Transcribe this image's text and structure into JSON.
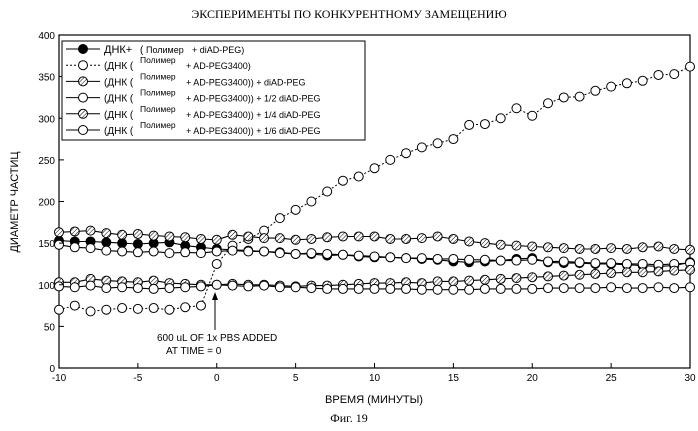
{
  "chart_data": {
    "type": "line",
    "title": "ЭКСПЕРИМЕНТЫ ПО КОНКУРЕНТНОМУ ЗАМЕЩЕНИЮ",
    "xlabel": "ВРЕМЯ (МИНУТЫ)",
    "ylabel": "ДИАМЕТР ЧАСТИЦ",
    "xlim": [
      -10,
      30
    ],
    "ylim": [
      0,
      400
    ],
    "xticks": [
      "-10",
      "-5",
      "0",
      "5",
      "10",
      "15",
      "20",
      "25",
      "30"
    ],
    "yticks": [
      "0",
      "50",
      "100",
      "150",
      "200",
      "250",
      "300",
      "350",
      "400"
    ],
    "grid": false,
    "legend_position": "top-left",
    "annotation": [
      "600 uL OF 1x PBS ADDED",
      "AT TIME = 0"
    ],
    "caption": "Фиг. 19",
    "x": [
      -10,
      -9,
      -8,
      -7,
      -6,
      -5,
      -4,
      -3,
      -2,
      -1,
      0,
      1,
      2,
      3,
      4,
      5,
      6,
      7,
      8,
      9,
      10,
      11,
      12,
      13,
      14,
      15,
      16,
      17,
      18,
      19,
      20,
      21,
      22,
      23,
      24,
      25,
      26,
      27,
      28,
      29,
      30
    ],
    "series": [
      {
        "legend": {
          "main": "ДНК+",
          "paren_open": "(",
          "sup": "",
          "sub": "Полимер",
          "rest": "+ diAD-PEG)"
        },
        "marker": "filled",
        "values": [
          153,
          152,
          152,
          151,
          150,
          149,
          150,
          151,
          147,
          145,
          143,
          142,
          141,
          140,
          139,
          137,
          137,
          135,
          136,
          134,
          133,
          133,
          132,
          131,
          130,
          128,
          127,
          128,
          129,
          131,
          132,
          127,
          126,
          126,
          125,
          125,
          124,
          123,
          122,
          123,
          127
        ]
      },
      {
        "legend": {
          "main": "",
          "paren_open": "(ДНК (",
          "sup": "Полимер",
          "sub": "",
          "rest": "+ AD-PEG3400)"
        },
        "marker": "open",
        "values": [
          70,
          75,
          68,
          70,
          72,
          71,
          72,
          70,
          73,
          75,
          125,
          147,
          155,
          165,
          180,
          190,
          200,
          212,
          225,
          230,
          240,
          250,
          258,
          265,
          270,
          275,
          292,
          293,
          300,
          312,
          303,
          318,
          325,
          326,
          333,
          338,
          342,
          345,
          352,
          353,
          362
        ]
      },
      {
        "legend": {
          "main": "",
          "paren_open": "(ДНК (",
          "sup": "Полимер",
          "sub": "",
          "rest": "+ AD-PEG3400)) + diAD-PEG"
        },
        "marker": "hatched",
        "values": [
          163,
          164,
          165,
          162,
          160,
          161,
          159,
          158,
          157,
          155,
          154,
          160,
          158,
          156,
          156,
          154,
          155,
          157,
          158,
          158,
          158,
          155,
          155,
          156,
          158,
          155,
          152,
          150,
          148,
          147,
          146,
          145,
          144,
          143,
          143,
          144,
          143,
          145,
          146,
          143,
          142
        ]
      },
      {
        "legend": {
          "main": "",
          "paren_open": "(ДНК (",
          "sup": "Полимер",
          "sub": "",
          "rest": "+ AD-PEG3400)) + 1/2 diAD-PEG"
        },
        "marker": "open",
        "values": [
          148,
          145,
          144,
          141,
          140,
          139,
          140,
          138,
          139,
          138,
          140,
          141,
          140,
          140,
          138,
          137,
          138,
          137,
          136,
          135,
          134,
          133,
          132,
          132,
          131,
          131,
          130,
          130,
          129,
          129,
          130,
          128,
          128,
          127,
          126,
          126,
          125,
          125,
          124,
          125,
          126
        ]
      },
      {
        "legend": {
          "main": "",
          "paren_open": "(ДНК (",
          "sup": "Полимер",
          "sub": "",
          "rest": "+ AD-PEG3400)) + 1/4 diAD-PEG"
        },
        "marker": "hatched",
        "values": [
          103,
          103,
          107,
          105,
          104,
          103,
          105,
          102,
          101,
          100,
          100,
          101,
          100,
          100,
          99,
          98,
          99,
          99,
          100,
          101,
          102,
          102,
          103,
          102,
          104,
          104,
          105,
          106,
          107,
          108,
          109,
          110,
          111,
          112,
          113,
          114,
          115,
          115,
          116,
          117,
          118
        ]
      },
      {
        "legend": {
          "main": "",
          "paren_open": "(ДНК (",
          "sup": "Полимер",
          "sub": "",
          "rest": "+ AD-PEG3400)) + 1/6 diAD-PEG"
        },
        "marker": "open",
        "values": [
          98,
          97,
          99,
          96,
          97,
          96,
          95,
          96,
          97,
          98,
          100,
          99,
          98,
          99,
          97,
          97,
          96,
          95,
          95,
          95,
          95,
          95,
          95,
          94,
          94,
          94,
          94,
          95,
          95,
          95,
          95,
          96,
          96,
          96,
          96,
          97,
          96,
          96,
          97,
          96,
          97
        ]
      }
    ]
  }
}
